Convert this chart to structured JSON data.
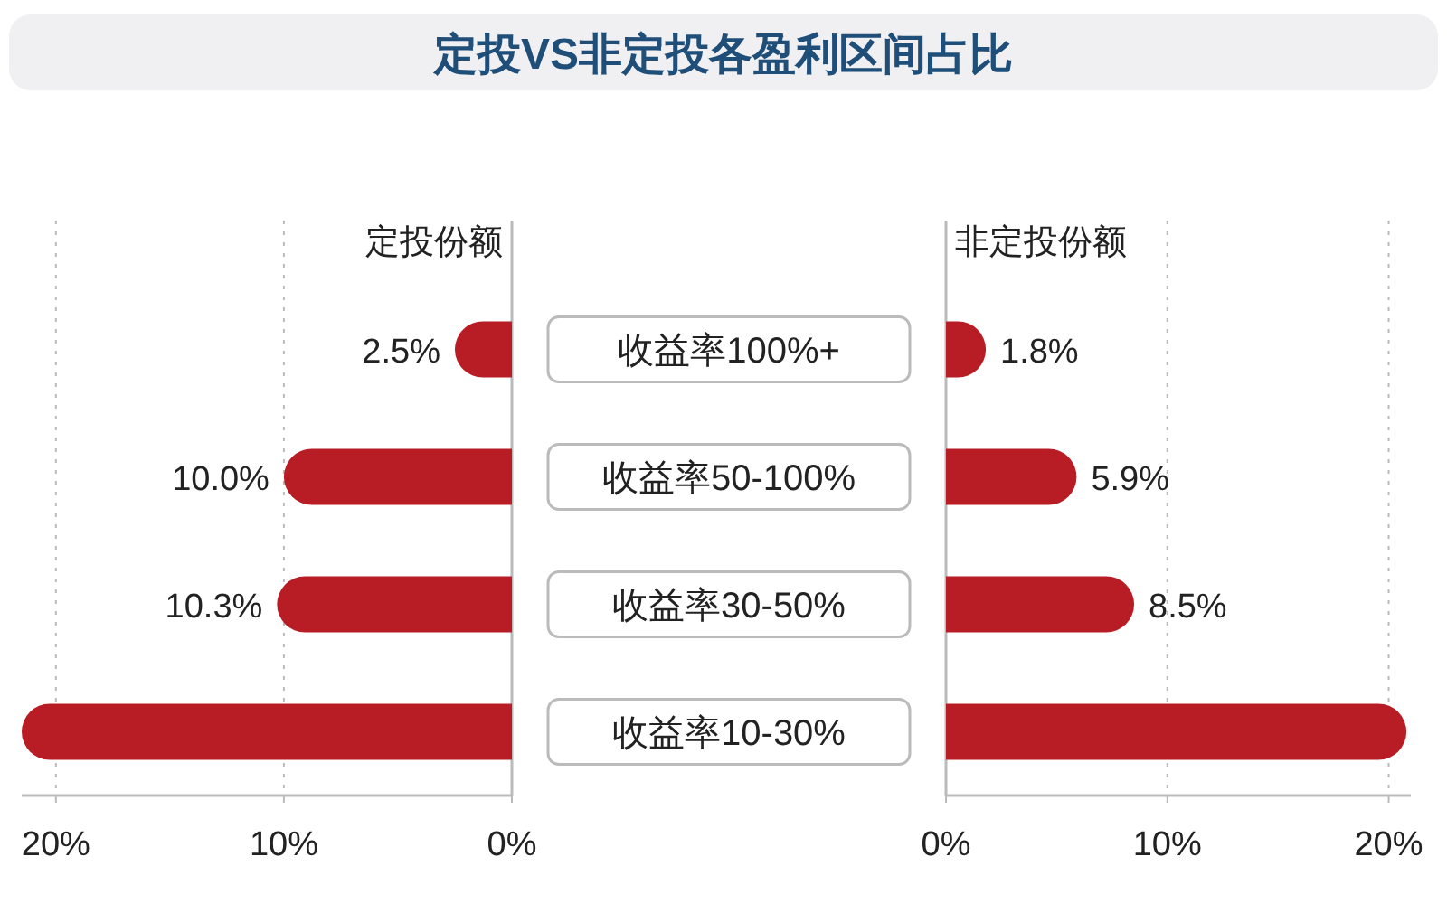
{
  "chart_data": [
    {
      "type": "bar",
      "orientation": "horizontal",
      "title": "定投VS非定投各盈利区间占比",
      "subtitle": "定投份额",
      "categories": [
        "收益率100%+",
        "收益率50-100%",
        "收益率30-50%",
        "收益率10-30%"
      ],
      "values": [
        2.5,
        10.0,
        10.3,
        21.5
      ],
      "value_labels": [
        "2.5%",
        "10.0%",
        "10.3%",
        null
      ],
      "color": "#b81c25",
      "xlim": [
        21.5,
        0
      ],
      "xticks": [
        {
          "value": 20,
          "label": "20%"
        },
        {
          "value": 10,
          "label": "10%"
        },
        {
          "value": 0,
          "label": "0%"
        }
      ],
      "grid": "x"
    },
    {
      "type": "bar",
      "orientation": "horizontal",
      "subtitle": "非定投份额",
      "categories": [
        null,
        null,
        null,
        null
      ],
      "values": [
        1.8,
        5.9,
        8.5,
        20.8
      ],
      "value_labels": [
        "1.8%",
        "5.9%",
        "8.5%",
        null
      ],
      "color": "#b81c25",
      "xlim": [
        0,
        21
      ],
      "xticks": [
        {
          "value": 0,
          "label": "0%"
        },
        {
          "value": 10,
          "label": "10%"
        },
        {
          "value": 20,
          "label": "20%"
        }
      ],
      "grid": "x",
      "tick_labels": "x"
    }
  ]
}
